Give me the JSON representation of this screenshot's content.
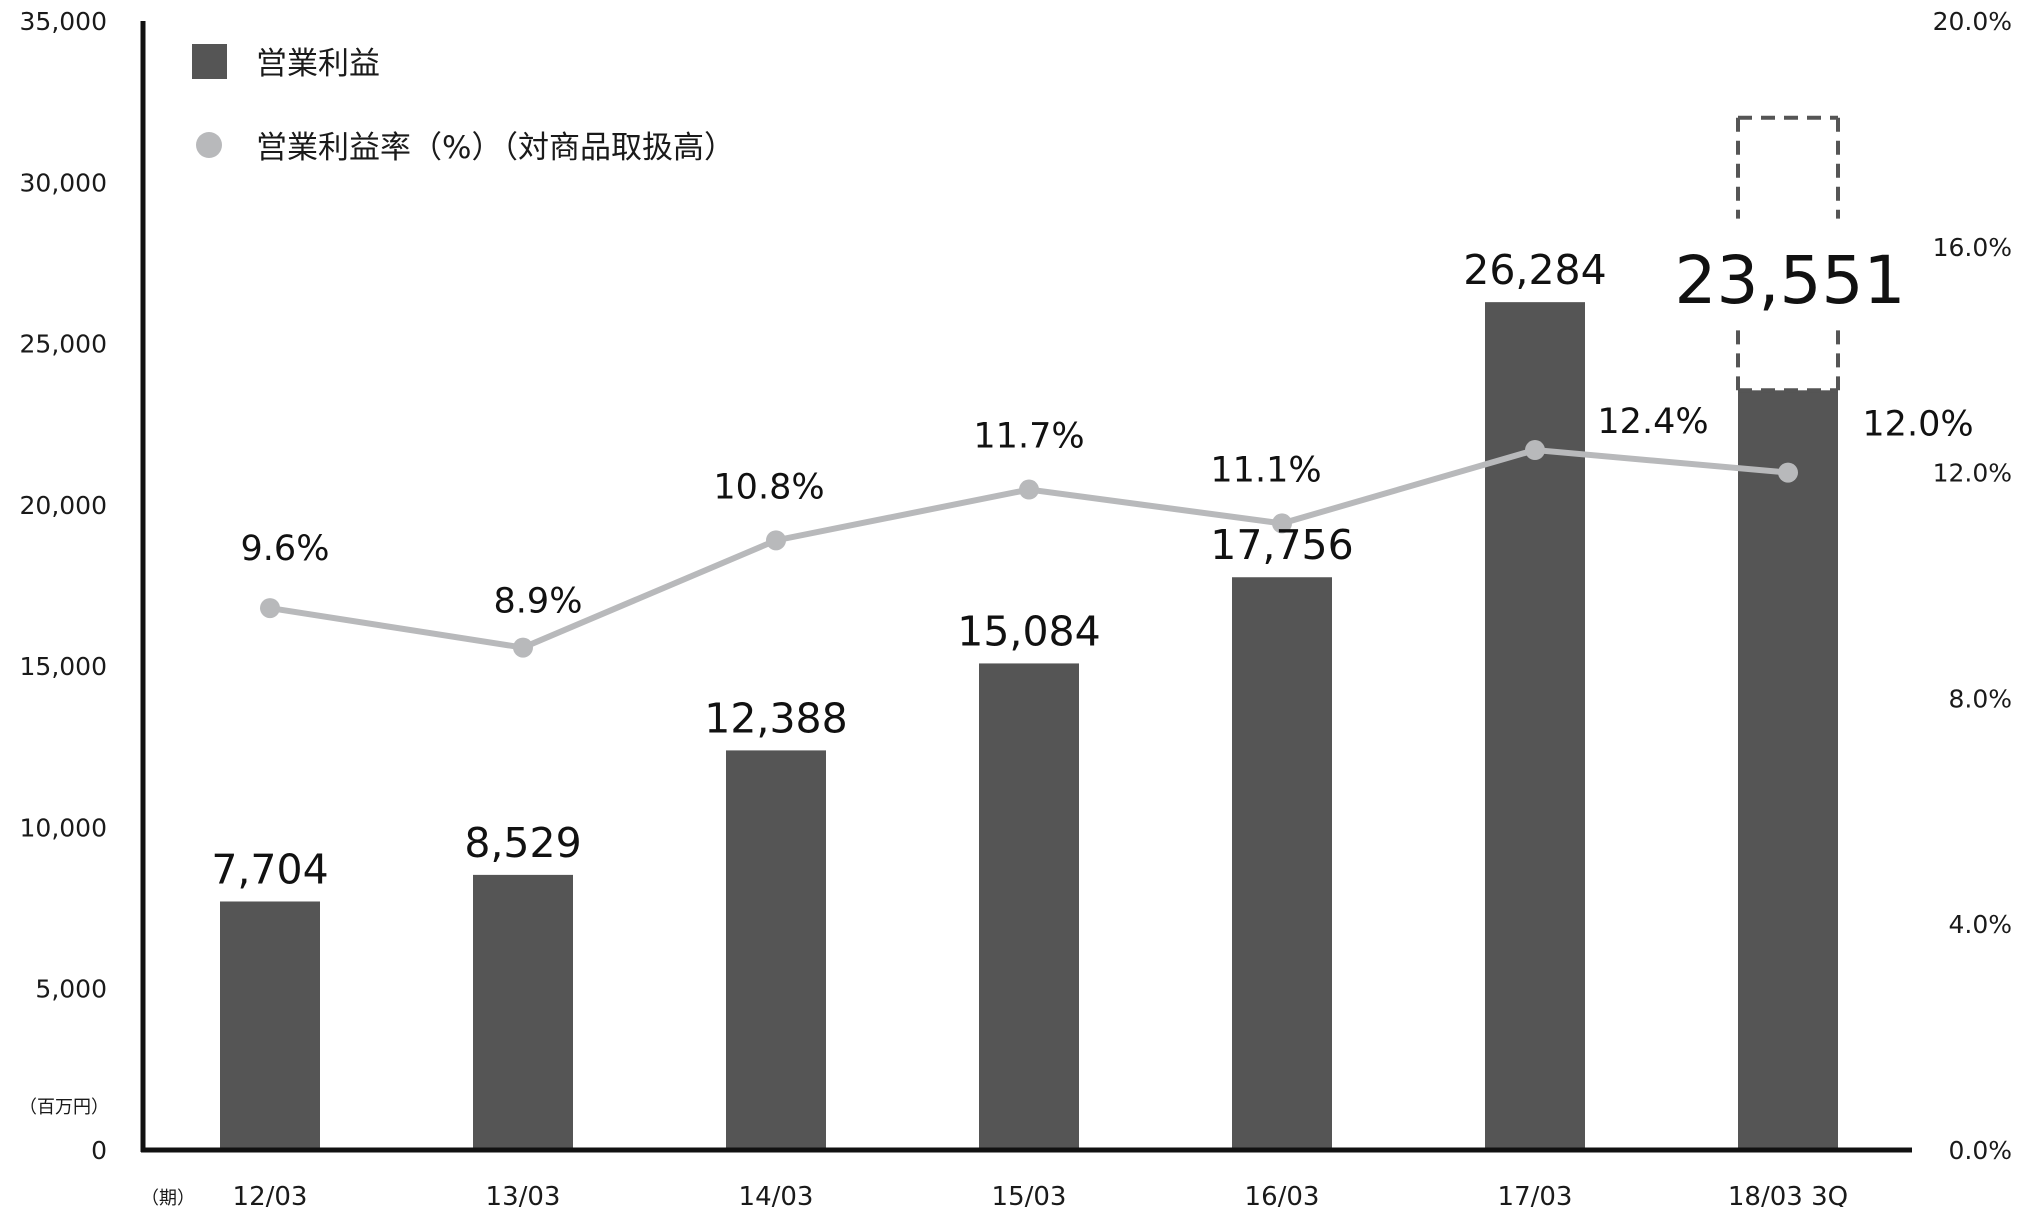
{
  "chart_data": {
    "type": "bar",
    "categories": [
      "12/03",
      "13/03",
      "14/03",
      "15/03",
      "16/03",
      "17/03",
      "18/03 3Q"
    ],
    "series": [
      {
        "name": "営業利益",
        "kind": "bar",
        "axis": "left",
        "color": "#555555",
        "values": [
          7704,
          8529,
          12388,
          15084,
          17756,
          26284,
          23551
        ],
        "value_labels": [
          "7,704",
          "8,529",
          "12,388",
          "15,084",
          "17,756",
          "26,284",
          "23,551"
        ],
        "forecast": {
          "category_index": 6,
          "upper_value": 32000,
          "style": "dashed-box",
          "color": "#555555"
        }
      },
      {
        "name": "営業利益率（%）（対商品取扱高）",
        "kind": "line",
        "axis": "right",
        "color": "#b8b9bb",
        "values": [
          9.6,
          8.9,
          10.8,
          11.7,
          11.1,
          12.4,
          12.0
        ],
        "value_labels": [
          "9.6%",
          "8.9%",
          "10.8%",
          "11.7%",
          "11.1%",
          "12.4%",
          "12.0%"
        ]
      }
    ],
    "y_left": {
      "ylim": [
        0,
        35000
      ],
      "ticks": [
        0,
        5000,
        10000,
        15000,
        20000,
        25000,
        30000,
        35000
      ],
      "tick_labels": [
        "0",
        "5,000",
        "10,000",
        "15,000",
        "20,000",
        "25,000",
        "30,000",
        "35,000"
      ],
      "unit": "（百万円）"
    },
    "y_right": {
      "ylim": [
        0,
        20
      ],
      "ticks": [
        0,
        4,
        8,
        12,
        16,
        20
      ],
      "tick_labels": [
        "0.0%",
        "4.0%",
        "8.0%",
        "12.0%",
        "16.0%",
        "20.0%"
      ]
    },
    "x_unit": "（期）",
    "legend": {
      "placement": "top-left",
      "entries": [
        {
          "label": "営業利益",
          "marker": "square",
          "color": "#555555"
        },
        {
          "label": "営業利益率（%）（対商品取扱高）",
          "marker": "circle",
          "color": "#b8b9bb"
        }
      ]
    },
    "grid": false
  }
}
